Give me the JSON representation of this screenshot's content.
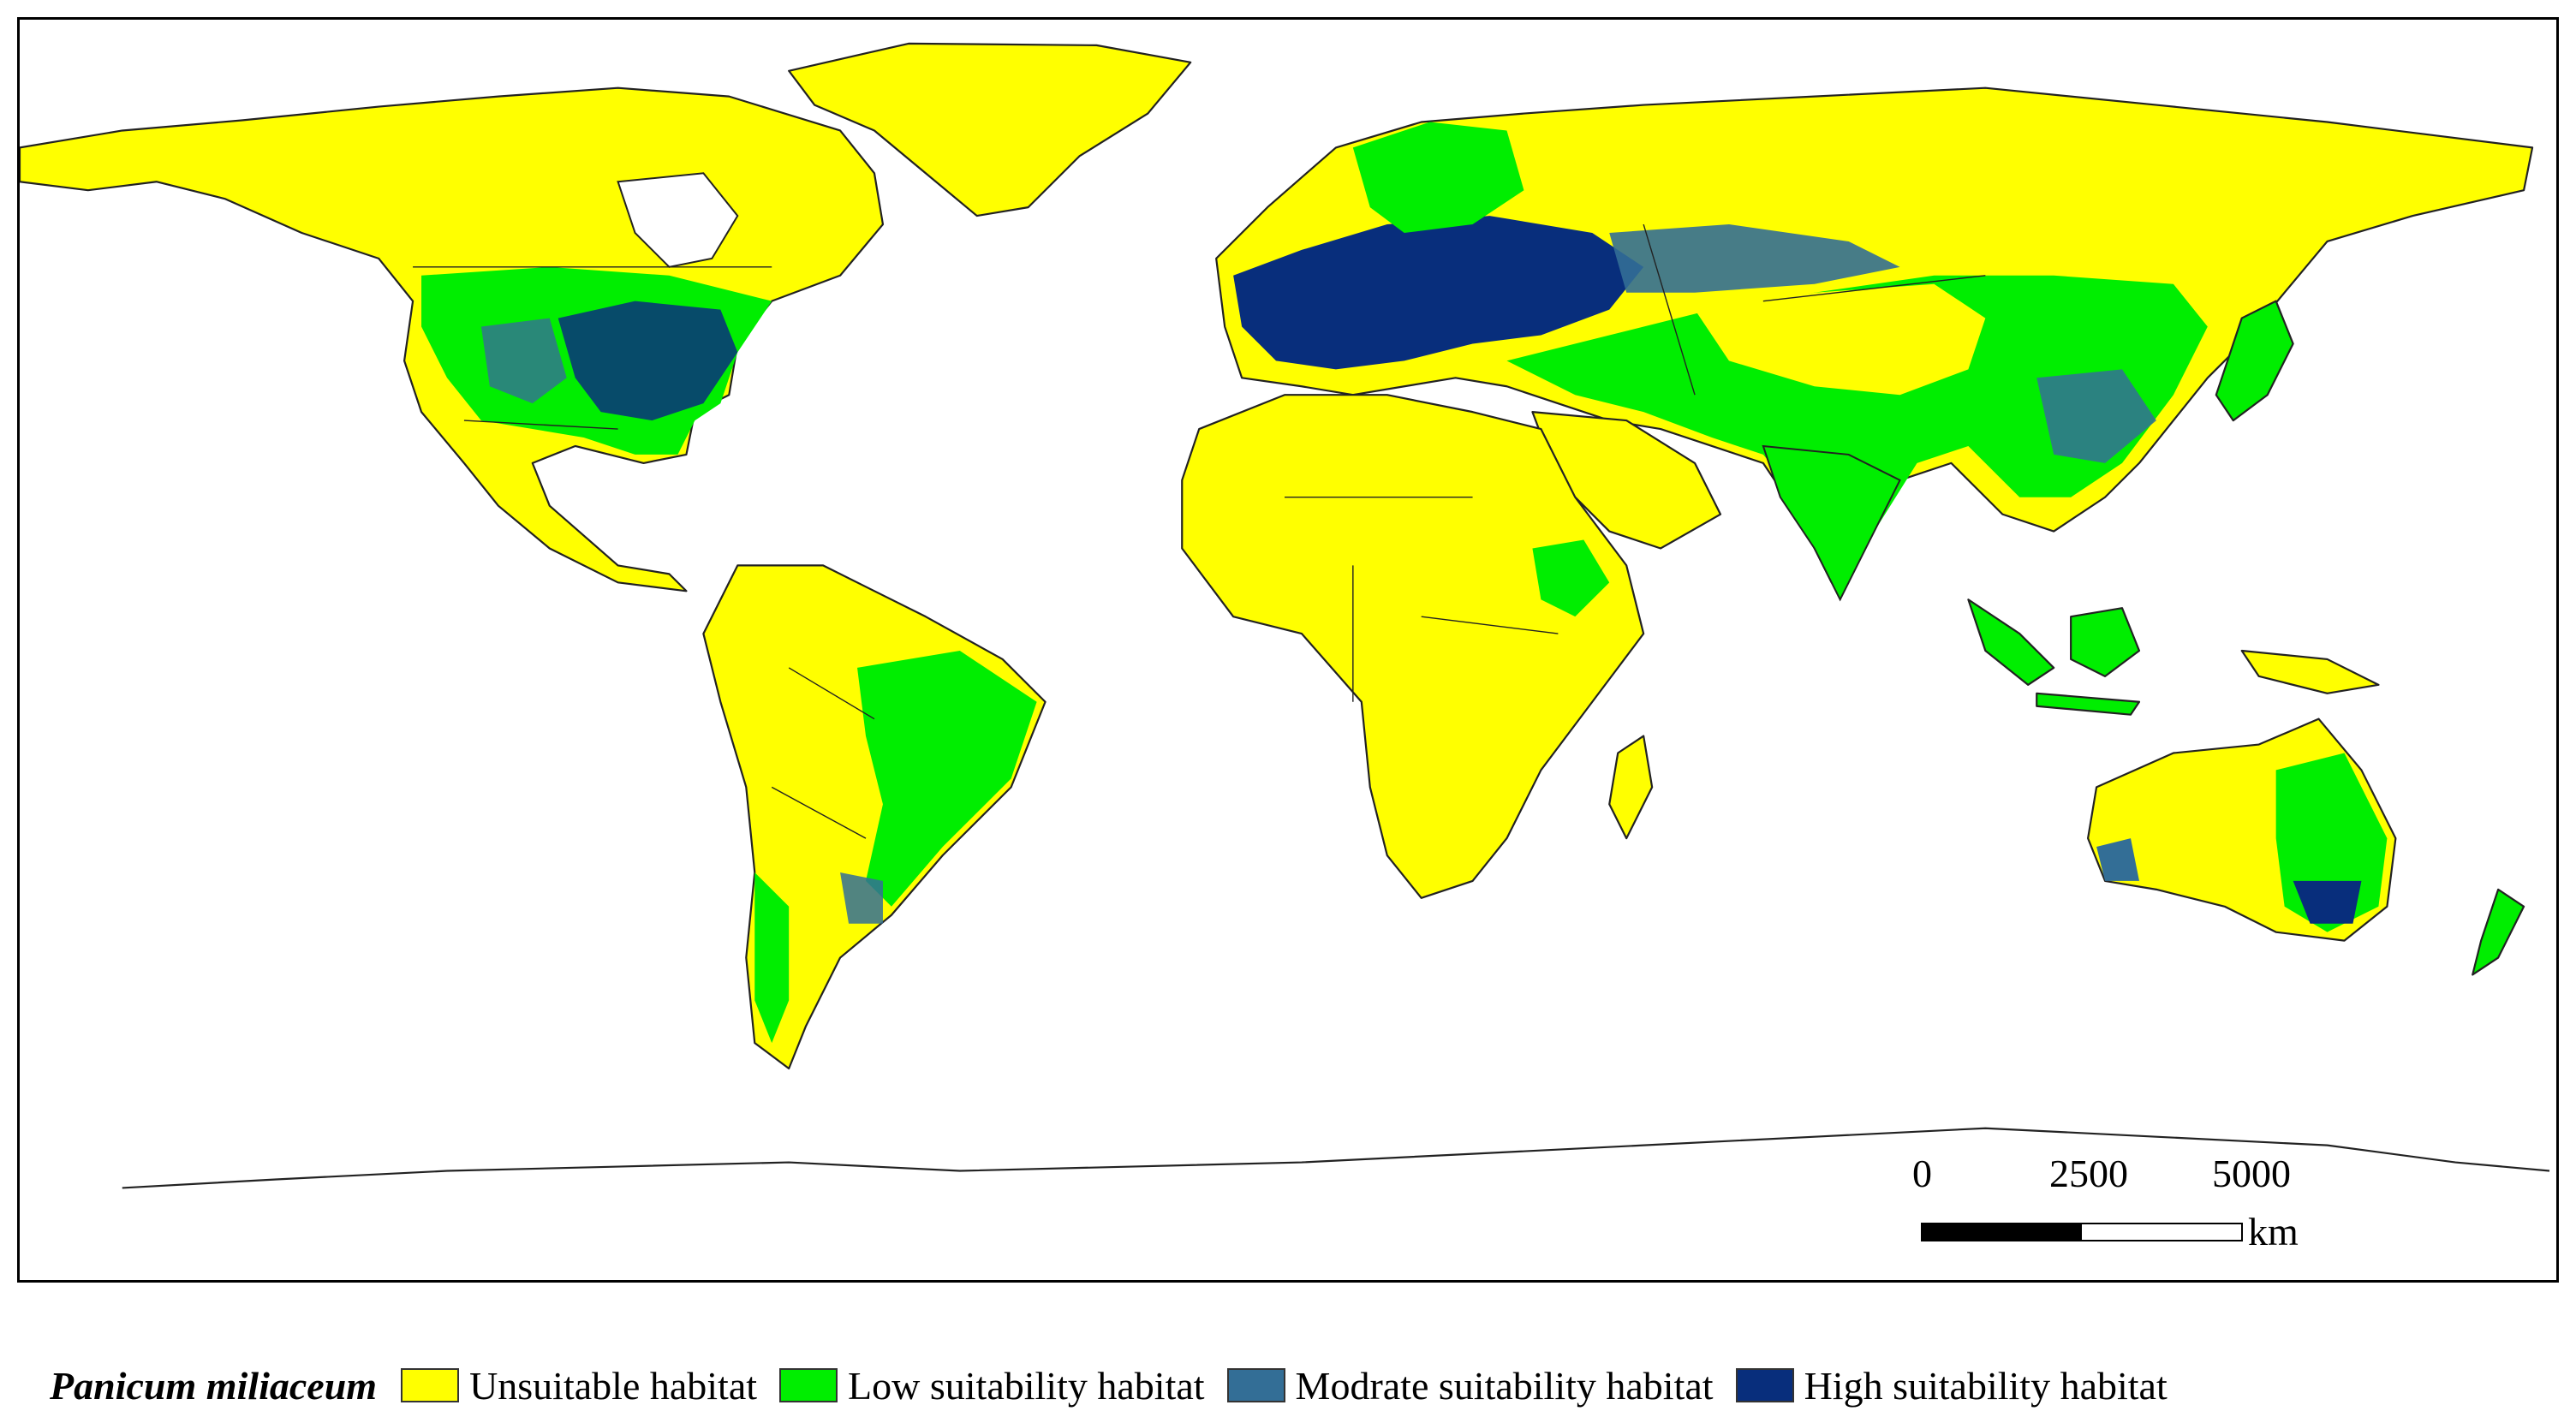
{
  "map": {
    "subject": "Panicum miliaceum",
    "colors": {
      "unsuitable": "#ffff00",
      "low": "#00ee00",
      "moderate": "#336e96",
      "high": "#082e7c",
      "border": "#222222",
      "ocean": "#ffffff"
    }
  },
  "scale_bar": {
    "ticks": [
      "0",
      "2500",
      "5000"
    ],
    "unit": "km"
  },
  "legend": {
    "title": "Panicum miliaceum",
    "items": [
      {
        "label": "Unsuitable habitat",
        "color": "#ffff00"
      },
      {
        "label": "Low suitability habitat",
        "color": "#00ee00"
      },
      {
        "label": "Modrate suitability habitat",
        "color": "#336e96"
      },
      {
        "label": "High suitability habitat",
        "color": "#082e7c"
      }
    ]
  }
}
